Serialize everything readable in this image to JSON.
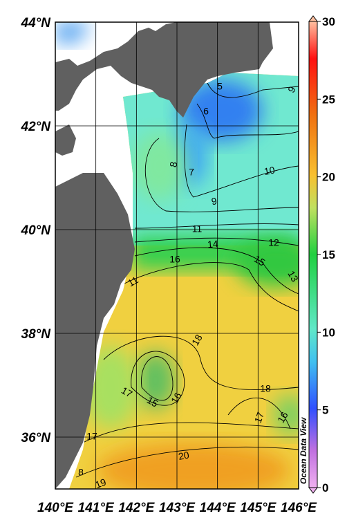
{
  "map": {
    "lon_ticks": [
      {
        "value": 140,
        "label": "140°E"
      },
      {
        "value": 141,
        "label": "141°E"
      },
      {
        "value": 142,
        "label": "142°E"
      },
      {
        "value": 143,
        "label": "143°E"
      },
      {
        "value": 144,
        "label": "144°E"
      },
      {
        "value": 145,
        "label": "145°E"
      },
      {
        "value": 146,
        "label": "146°E"
      }
    ],
    "lat_ticks": [
      {
        "value": 44,
        "label": "44°N"
      },
      {
        "value": 42,
        "label": "42°N"
      },
      {
        "value": 40,
        "label": "40°N"
      },
      {
        "value": 38,
        "label": "38°N"
      },
      {
        "value": 36,
        "label": "36°N"
      }
    ],
    "lon_range": [
      140,
      146
    ],
    "lat_range": [
      35,
      44
    ],
    "colorbar": {
      "range": [
        0,
        30
      ],
      "ticks": [
        0,
        5,
        10,
        15,
        20,
        25,
        30
      ]
    },
    "contour_labels": [
      5,
      9,
      6,
      8,
      7,
      10,
      9,
      11,
      14,
      12,
      16,
      15,
      13,
      11,
      18,
      18,
      17,
      15,
      16,
      17,
      16,
      17,
      20,
      8,
      19
    ],
    "watermark": "Ocean Data View"
  }
}
